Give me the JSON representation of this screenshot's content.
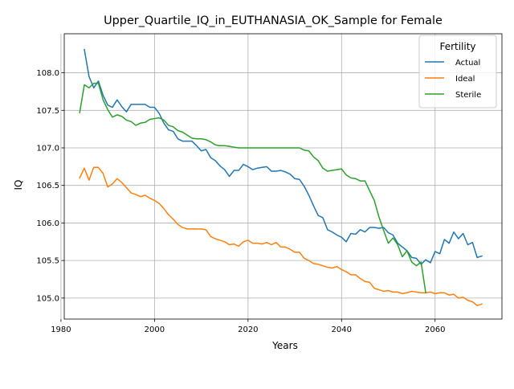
{
  "chart_data": {
    "type": "line",
    "title": "Upper_Quartile_IQ_in_EUTHANASIA_OK_Sample for Female",
    "xlabel": "Years",
    "ylabel": "IQ",
    "xlim": [
      1980.7,
      2074.3
    ],
    "ylim": [
      104.72,
      108.52
    ],
    "xticks": [
      1980,
      2000,
      2020,
      2040,
      2060
    ],
    "yticks": [
      105.0,
      105.5,
      106.0,
      106.5,
      107.0,
      107.5,
      108.0
    ],
    "xtick_labels": [
      "1980",
      "2000",
      "2020",
      "2040",
      "2060"
    ],
    "ytick_labels": [
      "105.0",
      "105.5",
      "106.0",
      "106.5",
      "107.0",
      "107.5",
      "108.0"
    ],
    "grid": true,
    "legend": {
      "title": "Fertility",
      "position": "top-right"
    },
    "series": [
      {
        "name": "Actual",
        "color": "#1f77b4",
        "x": [
          1985,
          1986,
          1987,
          1988,
          1989,
          1990,
          1991,
          1992,
          1993,
          1994,
          1995,
          1996,
          1997,
          1998,
          1999,
          2000,
          2001,
          2002,
          2003,
          2004,
          2005,
          2006,
          2007,
          2008,
          2009,
          2010,
          2011,
          2012,
          2013,
          2014,
          2015,
          2016,
          2017,
          2018,
          2019,
          2020,
          2021,
          2022,
          2023,
          2024,
          2025,
          2026,
          2027,
          2028,
          2029,
          2030,
          2031,
          2032,
          2033,
          2034,
          2035,
          2036,
          2037,
          2038,
          2039,
          2040,
          2041,
          2042,
          2043,
          2044,
          2045,
          2046,
          2047,
          2048,
          2049,
          2050,
          2051,
          2052,
          2053,
          2054,
          2055,
          2056,
          2057,
          2058,
          2059,
          2060,
          2061,
          2062,
          2063,
          2064,
          2065,
          2066,
          2067,
          2068,
          2069,
          2070
        ],
        "y": [
          108.31,
          107.95,
          107.8,
          107.89,
          107.7,
          107.57,
          107.54,
          107.64,
          107.55,
          107.48,
          107.58,
          107.58,
          107.58,
          107.58,
          107.54,
          107.54,
          107.46,
          107.33,
          107.24,
          107.22,
          107.12,
          107.09,
          107.09,
          107.09,
          107.03,
          106.96,
          106.98,
          106.87,
          106.83,
          106.76,
          106.71,
          106.62,
          106.7,
          106.7,
          106.78,
          106.75,
          106.71,
          106.73,
          106.74,
          106.75,
          106.69,
          106.69,
          106.7,
          106.68,
          106.65,
          106.59,
          106.58,
          106.49,
          106.37,
          106.23,
          106.1,
          106.07,
          105.91,
          105.88,
          105.84,
          105.81,
          105.75,
          105.86,
          105.85,
          105.91,
          105.88,
          105.94,
          105.94,
          105.93,
          105.94,
          105.87,
          105.84,
          105.73,
          105.68,
          105.63,
          105.54,
          105.53,
          105.45,
          105.51,
          105.47,
          105.62,
          105.59,
          105.78,
          105.73,
          105.88,
          105.79,
          105.86,
          105.71,
          105.74,
          105.54,
          105.56
        ]
      },
      {
        "name": "Ideal",
        "color": "#ff7f0e",
        "x": [
          1984,
          1985,
          1986,
          1987,
          1988,
          1989,
          1990,
          1991,
          1992,
          1993,
          1994,
          1995,
          1996,
          1997,
          1998,
          1999,
          2000,
          2001,
          2002,
          2003,
          2004,
          2005,
          2006,
          2007,
          2008,
          2009,
          2010,
          2011,
          2012,
          2013,
          2014,
          2015,
          2016,
          2017,
          2018,
          2019,
          2020,
          2021,
          2022,
          2023,
          2024,
          2025,
          2026,
          2027,
          2028,
          2029,
          2030,
          2031,
          2032,
          2033,
          2034,
          2035,
          2036,
          2037,
          2038,
          2039,
          2040,
          2041,
          2042,
          2043,
          2044,
          2045,
          2046,
          2047,
          2048,
          2049,
          2050,
          2051,
          2052,
          2053,
          2054,
          2055,
          2056,
          2057,
          2058,
          2059,
          2060,
          2061,
          2062,
          2063,
          2064,
          2065,
          2066,
          2067,
          2068,
          2069,
          2070
        ],
        "y": [
          106.6,
          106.73,
          106.57,
          106.74,
          106.74,
          106.66,
          106.48,
          106.52,
          106.59,
          106.54,
          106.47,
          106.4,
          106.38,
          106.35,
          106.37,
          106.33,
          106.3,
          106.26,
          106.19,
          106.11,
          106.05,
          105.98,
          105.94,
          105.92,
          105.92,
          105.92,
          105.92,
          105.91,
          105.82,
          105.79,
          105.77,
          105.75,
          105.71,
          105.72,
          105.69,
          105.75,
          105.77,
          105.73,
          105.73,
          105.72,
          105.74,
          105.71,
          105.74,
          105.68,
          105.68,
          105.65,
          105.61,
          105.61,
          105.53,
          105.5,
          105.46,
          105.45,
          105.43,
          105.41,
          105.4,
          105.42,
          105.38,
          105.35,
          105.31,
          105.31,
          105.26,
          105.22,
          105.21,
          105.13,
          105.11,
          105.09,
          105.1,
          105.08,
          105.08,
          105.06,
          105.07,
          105.09,
          105.08,
          105.07,
          105.07,
          105.08,
          105.06,
          105.07,
          105.07,
          105.04,
          105.05,
          105.0,
          105.01,
          104.97,
          104.95,
          104.9,
          104.92
        ]
      },
      {
        "name": "Sterile",
        "color": "#2ca02c",
        "x": [
          1984,
          1985,
          1986,
          1987,
          1988,
          1989,
          1990,
          1991,
          1992,
          1993,
          1994,
          1995,
          1996,
          1997,
          1998,
          1999,
          2000,
          2001,
          2002,
          2003,
          2004,
          2005,
          2006,
          2007,
          2008,
          2009,
          2010,
          2011,
          2012,
          2013,
          2014,
          2015,
          2016,
          2017,
          2018,
          2019,
          2020,
          2021,
          2022,
          2023,
          2024,
          2025,
          2026,
          2027,
          2028,
          2029,
          2030,
          2031,
          2032,
          2033,
          2034,
          2035,
          2036,
          2037,
          2038,
          2039,
          2040,
          2041,
          2042,
          2043,
          2044,
          2045,
          2046,
          2047,
          2048,
          2049,
          2050,
          2051,
          2052,
          2053,
          2054,
          2055,
          2056,
          2057,
          2058
        ],
        "y": [
          107.47,
          107.84,
          107.8,
          107.86,
          107.86,
          107.64,
          107.51,
          107.41,
          107.44,
          107.42,
          107.37,
          107.35,
          107.3,
          107.33,
          107.34,
          107.38,
          107.39,
          107.4,
          107.37,
          107.3,
          107.28,
          107.23,
          107.21,
          107.17,
          107.13,
          107.12,
          107.12,
          107.11,
          107.08,
          107.04,
          107.03,
          107.03,
          107.02,
          107.01,
          107.0,
          107.0,
          107.0,
          107.0,
          107.0,
          107.0,
          107.0,
          107.0,
          107.0,
          107.0,
          107.0,
          107.0,
          107.0,
          107.0,
          106.97,
          106.96,
          106.88,
          106.83,
          106.73,
          106.69,
          106.7,
          106.71,
          106.72,
          106.64,
          106.6,
          106.59,
          106.56,
          106.56,
          106.43,
          106.3,
          106.08,
          105.9,
          105.73,
          105.8,
          105.71,
          105.55,
          105.63,
          105.48,
          105.43,
          105.48,
          105.07
        ]
      }
    ]
  }
}
